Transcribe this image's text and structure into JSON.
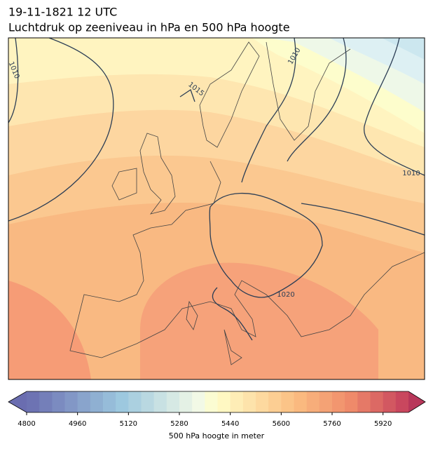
{
  "header": {
    "date": "19-11-1821 12 UTC",
    "title": "Luchtdruk op zeeniveau in hPa en 500 hPa hoogte"
  },
  "isobar_labels": [
    1010,
    1015,
    1010,
    1010,
    1020
  ],
  "colorbar": {
    "lim": [
      4800,
      6000
    ],
    "ticks": [
      4800,
      4960,
      5120,
      5280,
      5440,
      5600,
      5760,
      5920
    ],
    "label": "500 hPa hoogte in meter"
  }
}
